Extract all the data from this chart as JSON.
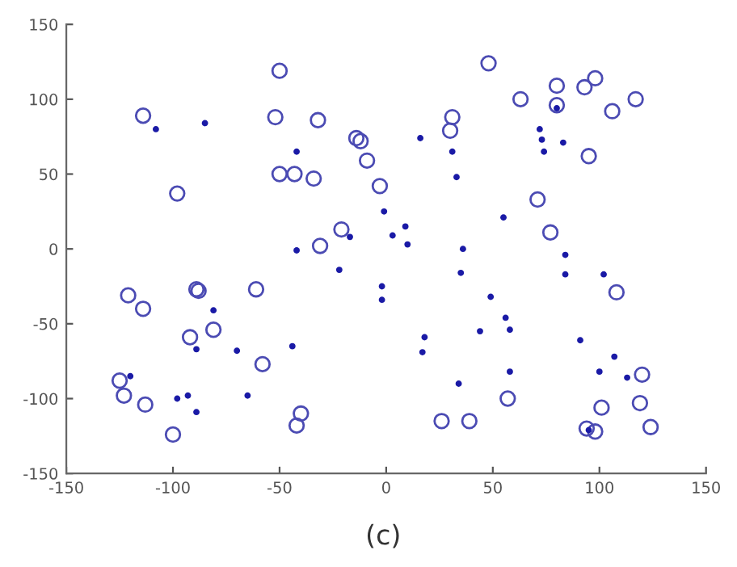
{
  "chart_data": {
    "type": "scatter",
    "xlim": [
      -150,
      150
    ],
    "ylim": [
      -150,
      150
    ],
    "xticks": [
      -150,
      -100,
      -50,
      0,
      50,
      100,
      150
    ],
    "yticks": [
      -150,
      -100,
      -50,
      0,
      50,
      100,
      150
    ],
    "grid": false,
    "marker": "circle",
    "annotations": [
      "(c)"
    ],
    "series": [
      {
        "color": "#4b4bb3",
        "x": [
          -114,
          -98,
          -50,
          -52,
          -32,
          -50,
          -43,
          -34,
          -14,
          -12,
          -9,
          -3,
          -21,
          -31,
          48,
          63,
          80,
          80,
          93,
          98,
          106,
          117,
          31,
          30,
          95,
          71,
          77,
          -121,
          -114,
          -89,
          -88,
          -61,
          -92,
          -81,
          -58,
          -125,
          -123,
          -113,
          -100,
          -40,
          -42,
          108,
          120,
          57,
          101,
          119,
          26,
          39,
          94,
          98,
          124
        ],
        "values": [
          89,
          37,
          119,
          88,
          86,
          50,
          50,
          47,
          74,
          72,
          59,
          42,
          13,
          2,
          124,
          100,
          109,
          96,
          108,
          114,
          92,
          100,
          88,
          79,
          62,
          33,
          11,
          -31,
          -40,
          -27,
          -28,
          -27,
          -59,
          -54,
          -77,
          -88,
          -98,
          -104,
          -124,
          -110,
          -118,
          -29,
          -84,
          -100,
          -106,
          -103,
          -115,
          -115,
          -120,
          -122,
          -119
        ]
      },
      {
        "color": "#1a1aa6",
        "x": [
          -108,
          -85,
          -42,
          -1,
          -17,
          3,
          -42,
          -22,
          80,
          16,
          31,
          33,
          72,
          73,
          74,
          83,
          9,
          10,
          55,
          36,
          84,
          35,
          84,
          102,
          -2,
          -2,
          49,
          56,
          58,
          44,
          18,
          17,
          91,
          107,
          100,
          113,
          58,
          34,
          95,
          -81,
          -89,
          -70,
          -44,
          -120,
          -98,
          -93,
          -65,
          -89
        ],
        "values": [
          80,
          84,
          65,
          25,
          8,
          9,
          -1,
          -14,
          94,
          74,
          65,
          48,
          80,
          73,
          65,
          71,
          15,
          3,
          21,
          0,
          -4,
          -16,
          -17,
          -17,
          -25,
          -34,
          -32,
          -46,
          -54,
          -55,
          -59,
          -69,
          -61,
          -72,
          -82,
          -86,
          -82,
          -90,
          -121,
          -41,
          -67,
          -68,
          -65,
          -85,
          -100,
          -98,
          -98,
          -109
        ]
      }
    ]
  }
}
